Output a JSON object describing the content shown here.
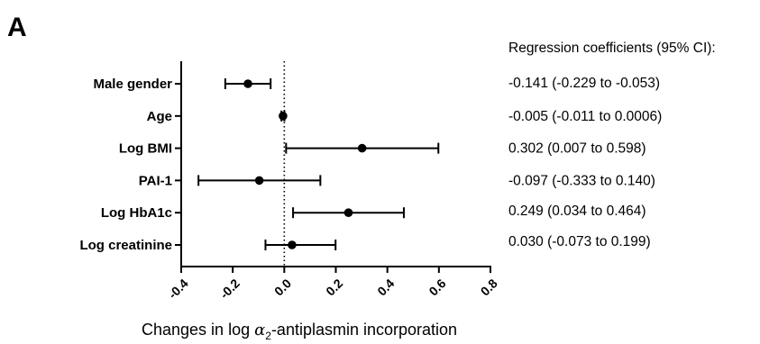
{
  "panel_label": "A",
  "chart_data": {
    "type": "forest",
    "categories": [
      "Male gender",
      "Age",
      "Log BMI",
      "PAI-1",
      "Log HbA1c",
      "Log creatinine"
    ],
    "estimates": [
      -0.141,
      -0.005,
      0.302,
      -0.097,
      0.249,
      0.03
    ],
    "ci_lower": [
      -0.229,
      -0.011,
      0.007,
      -0.333,
      0.034,
      -0.073
    ],
    "ci_upper": [
      -0.053,
      0.0006,
      0.598,
      0.14,
      0.464,
      0.199
    ],
    "coefficient_labels": [
      "-0.141 (-0.229 to -0.053)",
      "-0.005 (-0.011 to 0.0006)",
      "0.302 (0.007 to 0.598)",
      "-0.097 (-0.333 to 0.140)",
      "0.249 (0.034 to 0.464)",
      "0.030 (-0.073 to 0.199)"
    ],
    "coefficient_header": "Regression coefficients (95% CI):",
    "xlabel_prefix": "Changes in log ",
    "xlabel_symbol": "α",
    "xlabel_subscript": "2",
    "xlabel_suffix": "-antiplasmin incorporation",
    "xlim": [
      -0.4,
      0.8
    ],
    "xticks": [
      -0.4,
      -0.2,
      0.0,
      0.2,
      0.4,
      0.6,
      0.8
    ],
    "xtick_labels": [
      "-0.4",
      "-0.2",
      "0.0",
      "0.2",
      "0.4",
      "0.6",
      "0.8"
    ],
    "reference_line": 0,
    "grid": false
  }
}
